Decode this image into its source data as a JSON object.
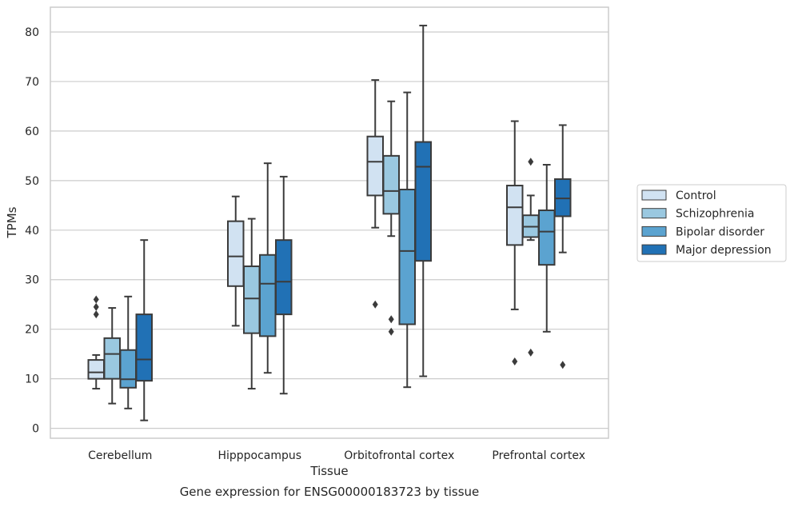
{
  "caption": "Gene expression for ENSG00000183723 by tissue",
  "chart_data": {
    "type": "box",
    "xlabel": "Tissue",
    "ylabel": "TPMs",
    "ylim": [
      -2,
      85
    ],
    "yticks": [
      0,
      10,
      20,
      30,
      40,
      50,
      60,
      70,
      80
    ],
    "grid": true,
    "legend_position": "right",
    "categories": [
      "Cerebellum",
      "Hipppocampus",
      "Orbitofrontal cortex",
      "Prefrontal cortex"
    ],
    "series": [
      {
        "name": "Control",
        "color": "#d1e2f2",
        "boxes": [
          {
            "whislo": 8,
            "q1": 10,
            "med": 11.3,
            "q3": 13.8,
            "whishi": 14.8,
            "fliers": [
              23,
              24.5,
              26
            ]
          },
          {
            "whislo": 20.7,
            "q1": 28.7,
            "med": 34.7,
            "q3": 41.8,
            "whishi": 46.8,
            "fliers": []
          },
          {
            "whislo": 40.5,
            "q1": 47,
            "med": 53.8,
            "q3": 58.9,
            "whishi": 70.3,
            "fliers": [
              25
            ]
          },
          {
            "whislo": 24,
            "q1": 37,
            "med": 44.6,
            "q3": 49,
            "whishi": 62,
            "fliers": [
              13.5
            ]
          }
        ]
      },
      {
        "name": "Schizophrenia",
        "color": "#9ac8e0",
        "boxes": [
          {
            "whislo": 5,
            "q1": 10,
            "med": 15,
            "q3": 18.2,
            "whishi": 24.3,
            "fliers": []
          },
          {
            "whislo": 8,
            "q1": 19.2,
            "med": 26.2,
            "q3": 32.7,
            "whishi": 42.3,
            "fliers": []
          },
          {
            "whislo": 38.8,
            "q1": 43.3,
            "med": 47.9,
            "q3": 55,
            "whishi": 66,
            "fliers": [
              19.5,
              22
            ]
          },
          {
            "whislo": 38,
            "q1": 38.6,
            "med": 40.7,
            "q3": 43,
            "whishi": 47,
            "fliers": [
              15.3,
              53.8
            ]
          }
        ]
      },
      {
        "name": "Bipolar disorder",
        "color": "#5ba3d0",
        "boxes": [
          {
            "whislo": 4,
            "q1": 8.2,
            "med": 9.9,
            "q3": 15.8,
            "whishi": 26.6,
            "fliers": []
          },
          {
            "whislo": 11.2,
            "q1": 18.6,
            "med": 29.2,
            "q3": 35,
            "whishi": 53.5,
            "fliers": []
          },
          {
            "whislo": 8.3,
            "q1": 21,
            "med": 35.8,
            "q3": 48.2,
            "whishi": 67.8,
            "fliers": []
          },
          {
            "whislo": 19.5,
            "q1": 33,
            "med": 39.7,
            "q3": 44,
            "whishi": 53.2,
            "fliers": []
          }
        ]
      },
      {
        "name": "Major depression",
        "color": "#2171b5",
        "boxes": [
          {
            "whislo": 1.6,
            "q1": 9.6,
            "med": 13.9,
            "q3": 23,
            "whishi": 38,
            "fliers": []
          },
          {
            "whislo": 7,
            "q1": 23,
            "med": 29.6,
            "q3": 38,
            "whishi": 50.8,
            "fliers": []
          },
          {
            "whislo": 10.5,
            "q1": 33.8,
            "med": 52.8,
            "q3": 57.8,
            "whishi": 81.3,
            "fliers": []
          },
          {
            "whislo": 35.5,
            "q1": 42.8,
            "med": 46.4,
            "q3": 50.3,
            "whishi": 61.2,
            "fliers": [
              12.8
            ]
          }
        ]
      }
    ]
  }
}
